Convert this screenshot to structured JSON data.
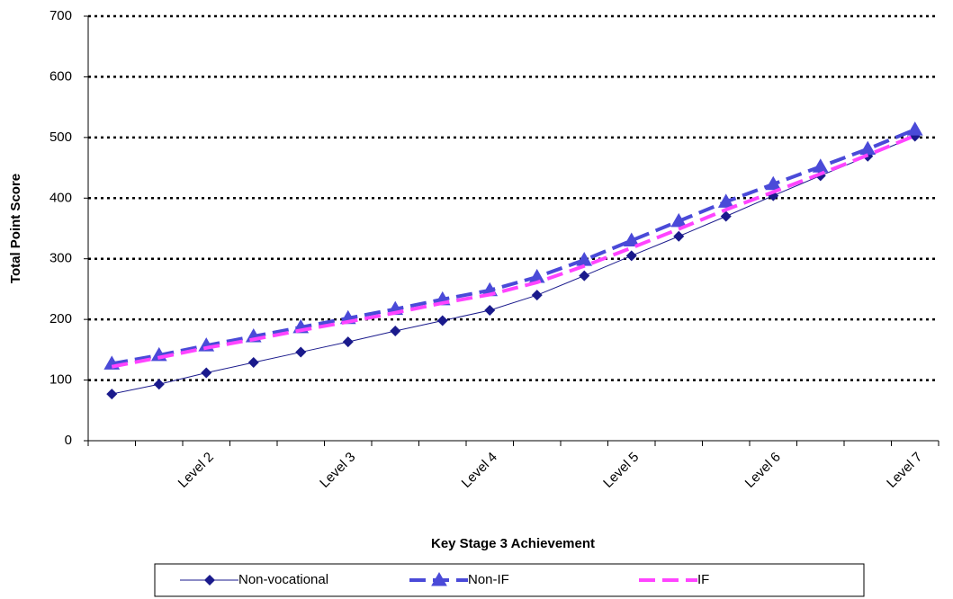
{
  "chart_data": {
    "type": "line",
    "x_label": "Key Stage 3 Achievement",
    "y_label": "Total Point Score",
    "categories": [
      null,
      null,
      "Level 2",
      null,
      null,
      "Level 3",
      null,
      null,
      "Level 4",
      null,
      null,
      "Level 5",
      null,
      null,
      "Level 6",
      null,
      null,
      "Level 7"
    ],
    "series": [
      {
        "name": "Non-vocational",
        "color": "#1a1a8c",
        "marker": "diamond",
        "dash": "solid",
        "values": [
          77,
          93,
          112,
          129,
          146,
          163,
          181,
          198,
          215,
          240,
          272,
          305,
          337,
          370,
          404,
          437,
          469,
          502
        ]
      },
      {
        "name": "Non-IF",
        "color": "#4a4ad8",
        "marker": "triangle",
        "dash": "dashed",
        "values": [
          127,
          141,
          157,
          172,
          187,
          202,
          217,
          233,
          248,
          270,
          298,
          330,
          362,
          394,
          423,
          452,
          481,
          513
        ]
      },
      {
        "name": "IF",
        "color": "#ff44ff",
        "marker": "none",
        "dash": "dashed",
        "values": [
          122,
          137,
          153,
          167,
          182,
          196,
          211,
          227,
          241,
          261,
          288,
          318,
          349,
          381,
          410,
          440,
          471,
          503
        ]
      }
    ],
    "ylim": [
      0,
      700
    ],
    "yticks": [
      0,
      100,
      200,
      300,
      400,
      500,
      600,
      700
    ],
    "grid": true,
    "legend": "bottom"
  }
}
